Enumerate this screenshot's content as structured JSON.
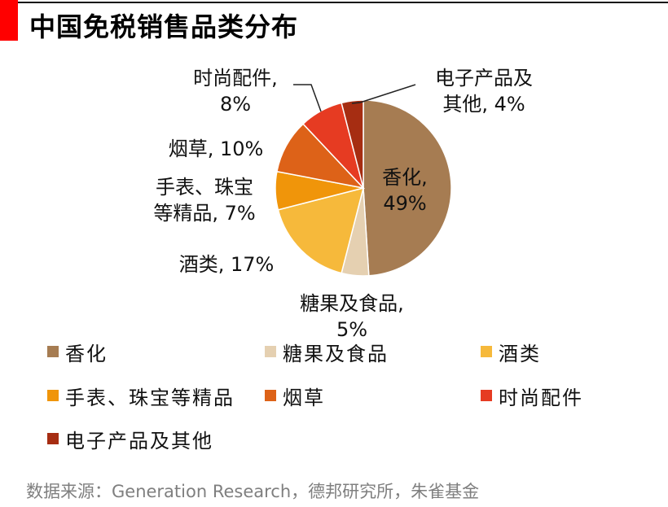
{
  "title": "中国免税销售品类分布",
  "chart_data": {
    "type": "pie",
    "title": "中国免税销售品类分布",
    "slices": [
      {
        "category": "香化",
        "value": 49,
        "label_lines": [
          "香化,",
          "49%"
        ],
        "color": "#a67c52"
      },
      {
        "category": "糖果及食品",
        "value": 5,
        "label_lines": [
          "糖果及食品,",
          "5%"
        ],
        "color": "#e5d0b1"
      },
      {
        "category": "酒类",
        "value": 17,
        "label_lines": [
          "酒类, 17%"
        ],
        "color": "#f6b93b"
      },
      {
        "category": "手表、珠宝等精品",
        "value": 7,
        "label_lines": [
          "手表、珠宝",
          "等精品, 7%"
        ],
        "color": "#f0950a"
      },
      {
        "category": "烟草",
        "value": 10,
        "label_lines": [
          "烟草, 10%"
        ],
        "color": "#dd6218"
      },
      {
        "category": "时尚配件",
        "value": 8,
        "label_lines": [
          "时尚配件,",
          "8%"
        ],
        "color": "#e63b22"
      },
      {
        "category": "电子产品及其他",
        "value": 4,
        "label_lines": [
          "电子产品及",
          "其他, 4%"
        ],
        "color": "#a62d12"
      }
    ],
    "legend": [
      "香化",
      "糖果及食品",
      "酒类",
      "手表、珠宝等精品",
      "烟草",
      "时尚配件",
      "电子产品及其他"
    ],
    "legend_position": "bottom"
  },
  "source": "数据来源：Generation Research，德邦研究所，朱雀基金"
}
